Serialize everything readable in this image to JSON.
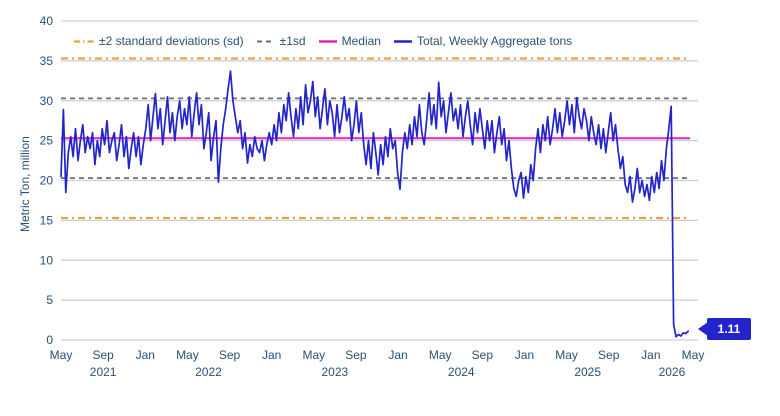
{
  "colors": {
    "series_blue": "#2424CB",
    "median_magenta": "#E620BE",
    "sd2_orange": "#EBA33B",
    "sd1_gray": "#6E6E6E",
    "axis_text": "#2B5172",
    "gridline": "#C9CFD6",
    "callout_bg": "#2424CB",
    "callout_text": "#ffffff"
  },
  "chart_data": {
    "type": "line",
    "title": "",
    "xlabel": "",
    "ylabel": "Metric Ton, million",
    "ylim": [
      0,
      40
    ],
    "yticks": [
      0,
      5,
      10,
      15,
      20,
      25,
      30,
      35,
      40
    ],
    "grid": "horizontal",
    "legend_position": "top",
    "x_start": "2021-05",
    "x_end": "2026-05",
    "x_frequency": "weekly",
    "xticks": [
      {
        "label": "May",
        "month_offset": 0
      },
      {
        "label": "Sep",
        "month_offset": 4
      },
      {
        "label": "Jan",
        "month_offset": 8
      },
      {
        "label": "May",
        "month_offset": 12
      },
      {
        "label": "Sep",
        "month_offset": 16
      },
      {
        "label": "Jan",
        "month_offset": 20
      },
      {
        "label": "May",
        "month_offset": 24
      },
      {
        "label": "Sep",
        "month_offset": 28
      },
      {
        "label": "Jan",
        "month_offset": 32
      },
      {
        "label": "May",
        "month_offset": 36
      },
      {
        "label": "Sep",
        "month_offset": 40
      },
      {
        "label": "Jan",
        "month_offset": 44
      },
      {
        "label": "May",
        "month_offset": 48
      },
      {
        "label": "Sep",
        "month_offset": 52
      },
      {
        "label": "Jan",
        "month_offset": 56
      },
      {
        "label": "May",
        "month_offset": 60
      }
    ],
    "year_labels": [
      {
        "label": "2021",
        "month_offset": 4
      },
      {
        "label": "2022",
        "month_offset": 14
      },
      {
        "label": "2023",
        "month_offset": 26
      },
      {
        "label": "2024",
        "month_offset": 38
      },
      {
        "label": "2025",
        "month_offset": 50
      },
      {
        "label": "2026",
        "month_offset": 58
      }
    ],
    "reference_lines": {
      "plus2sd": 35.3,
      "plus1sd": 30.3,
      "median": 25.3,
      "minus1sd": 20.3,
      "minus2sd": 15.3
    },
    "legend": [
      {
        "label": "±2 standard deviations (sd)",
        "color": "#EBA33B",
        "style": "dashdot"
      },
      {
        "label": "±1sd",
        "color": "#6E6E6E",
        "style": "dashed"
      },
      {
        "label": "Median",
        "color": "#E620BE",
        "style": "solid"
      },
      {
        "label": "Total, Weekly Aggregate tons",
        "color": "#2424CB",
        "style": "solid"
      }
    ],
    "last_point_label": "1.11",
    "series": [
      {
        "name": "Total, Weekly Aggregate tons",
        "color": "#2424CB",
        "values": [
          20.5,
          28.9,
          18.5,
          23.5,
          25.5,
          23.0,
          26.5,
          22.5,
          25.0,
          27.0,
          23.5,
          25.5,
          24.0,
          26.0,
          22.0,
          25.0,
          23.0,
          26.5,
          24.5,
          27.5,
          23.5,
          25.0,
          26.0,
          22.5,
          24.5,
          27.0,
          23.0,
          25.5,
          21.5,
          24.0,
          26.0,
          23.0,
          25.5,
          22.0,
          24.5,
          26.5,
          29.5,
          25.0,
          28.0,
          30.9,
          26.5,
          29.0,
          24.5,
          27.5,
          30.5,
          26.0,
          28.5,
          25.0,
          28.0,
          30.0,
          26.5,
          29.0,
          27.0,
          30.5,
          25.5,
          28.5,
          31.0,
          27.0,
          29.5,
          24.0,
          26.0,
          28.5,
          22.5,
          25.5,
          27.5,
          19.8,
          24.0,
          27.0,
          29.0,
          31.5,
          33.7,
          30.0,
          28.0,
          26.0,
          27.5,
          24.0,
          26.0,
          22.2,
          24.5,
          23.0,
          25.5,
          24.0,
          23.5,
          25.0,
          22.5,
          24.5,
          26.0,
          24.5,
          27.0,
          25.0,
          28.5,
          26.0,
          29.5,
          27.5,
          31.0,
          28.0,
          25.5,
          29.0,
          26.5,
          30.5,
          27.0,
          32.0,
          28.5,
          30.0,
          32.4,
          28.0,
          30.5,
          26.5,
          29.0,
          31.5,
          27.0,
          30.0,
          28.5,
          25.5,
          29.5,
          26.0,
          28.0,
          30.5,
          27.5,
          29.0,
          25.0,
          27.0,
          30.0,
          26.0,
          28.5,
          24.5,
          22.0,
          25.0,
          21.5,
          26.0,
          23.5,
          20.7,
          24.5,
          22.0,
          25.5,
          23.0,
          26.5,
          24.0,
          25.0,
          21.0,
          18.9,
          23.5,
          26.0,
          24.0,
          27.0,
          24.5,
          28.0,
          25.5,
          29.5,
          26.0,
          24.5,
          27.5,
          31.0,
          27.0,
          29.5,
          26.5,
          32.3,
          28.0,
          30.0,
          26.0,
          28.5,
          31.0,
          27.5,
          29.0,
          26.5,
          29.5,
          25.5,
          28.0,
          30.0,
          27.0,
          24.5,
          28.5,
          26.0,
          29.0,
          26.5,
          24.0,
          27.5,
          25.0,
          27.5,
          23.5,
          26.0,
          28.0,
          24.5,
          26.5,
          22.5,
          25.0,
          21.5,
          19.0,
          18.0,
          20.0,
          21.0,
          17.8,
          20.5,
          18.5,
          22.0,
          20.0,
          24.0,
          26.5,
          23.5,
          27.0,
          25.0,
          28.0,
          24.5,
          26.5,
          29.0,
          26.0,
          28.5,
          25.5,
          27.5,
          30.0,
          27.0,
          29.5,
          26.0,
          30.4,
          28.0,
          26.5,
          29.0,
          27.5,
          25.0,
          28.0,
          26.0,
          24.5,
          27.0,
          24.0,
          26.5,
          23.5,
          26.0,
          28.5,
          25.0,
          27.0,
          24.0,
          21.5,
          23.0,
          19.5,
          18.5,
          20.5,
          17.3,
          19.0,
          21.5,
          18.5,
          20.0,
          18.0,
          19.5,
          17.5,
          20.5,
          18.5,
          21.0,
          19.0,
          22.5,
          20.0,
          24.0,
          26.5,
          29.3,
          2.0,
          0.4,
          0.7,
          0.5,
          0.9,
          0.8,
          1.11
        ]
      }
    ]
  }
}
